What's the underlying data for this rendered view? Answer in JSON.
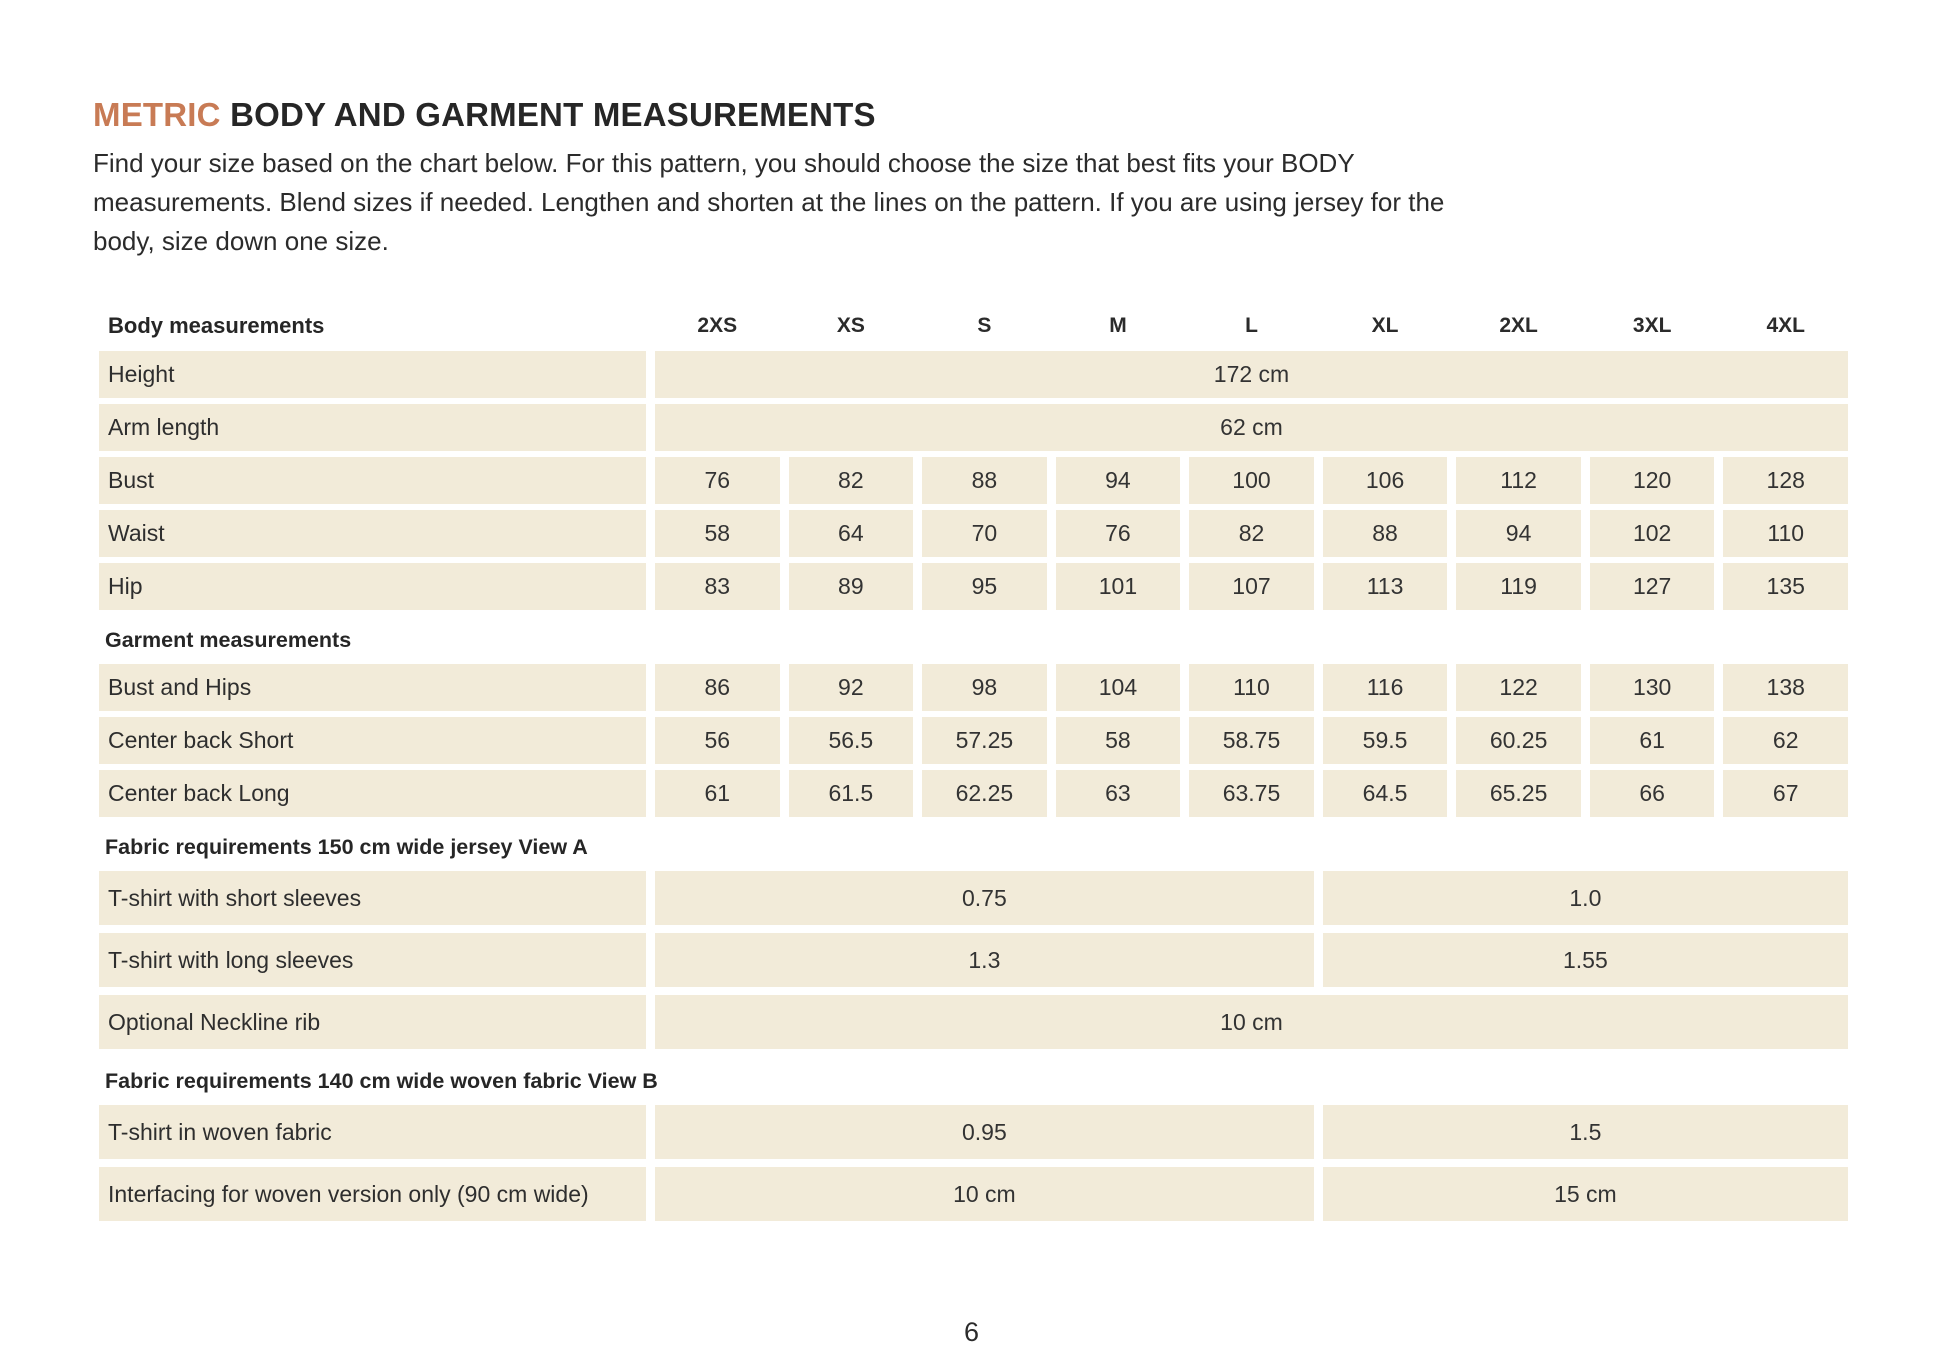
{
  "colors": {
    "accent": "#C87B55",
    "row_bg": "#F2EBD9",
    "text": "#2A2A2A"
  },
  "page": {
    "title": {
      "accent": "METRIC",
      "rest": " BODY AND GARMENT MEASUREMENTS"
    },
    "intro_lines": [
      "Find your size based on the chart below. For this pattern, you should choose the size that best fits your BODY",
      "measurements. Blend sizes if needed. Lengthen and shorten at the lines on the pattern. If you are using jersey for the",
      "body, size down one size."
    ],
    "page_number": "6"
  },
  "table": {
    "header": {
      "label": "Body measurements",
      "sizes": [
        "2XS",
        "XS",
        "S",
        "M",
        "L",
        "XL",
        "2XL",
        "3XL",
        "4XL"
      ]
    },
    "rows": [
      {
        "type": "full",
        "label": "Height",
        "value": "172 cm"
      },
      {
        "type": "full",
        "label": "Arm length",
        "value": "62 cm"
      },
      {
        "type": "cells",
        "label": "Bust",
        "values": [
          "76",
          "82",
          "88",
          "94",
          "100",
          "106",
          "112",
          "120",
          "128"
        ]
      },
      {
        "type": "cells",
        "label": "Waist",
        "values": [
          "58",
          "64",
          "70",
          "76",
          "82",
          "88",
          "94",
          "102",
          "110"
        ]
      },
      {
        "type": "cells",
        "label": "Hip",
        "values": [
          "83",
          "89",
          "95",
          "101",
          "107",
          "113",
          "119",
          "127",
          "135"
        ]
      },
      {
        "type": "section",
        "label": "Garment measurements"
      },
      {
        "type": "cells",
        "label": "Bust and Hips",
        "values": [
          "86",
          "92",
          "98",
          "104",
          "110",
          "116",
          "122",
          "130",
          "138"
        ]
      },
      {
        "type": "cells",
        "label": "Center back Short",
        "values": [
          "56",
          "56.5",
          "57.25",
          "58",
          "58.75",
          "59.5",
          "60.25",
          "61",
          "62"
        ]
      },
      {
        "type": "cells",
        "label": "Center back Long",
        "values": [
          "61",
          "61.5",
          "62.25",
          "63",
          "63.75",
          "64.5",
          "65.25",
          "66",
          "67"
        ]
      },
      {
        "type": "section",
        "label": "Fabric requirements 150 cm wide jersey View A"
      },
      {
        "type": "split",
        "label": "T-shirt with short sleeves",
        "left": "0.75",
        "right": "1.0",
        "tall": true
      },
      {
        "type": "split",
        "label": "T-shirt with long sleeves",
        "left": "1.3",
        "right": "1.55",
        "tall": true
      },
      {
        "type": "full",
        "label": "Optional Neckline rib",
        "value": "10 cm",
        "tall": true
      },
      {
        "type": "section",
        "label": "Fabric requirements 140 cm wide woven fabric View B"
      },
      {
        "type": "split",
        "label": "T-shirt in woven fabric",
        "left": "0.95",
        "right": "1.5",
        "tall": true
      },
      {
        "type": "split",
        "label": "Interfacing for woven version only (90 cm wide)",
        "left": "10 cm",
        "right": "15 cm",
        "tall": true
      }
    ]
  }
}
